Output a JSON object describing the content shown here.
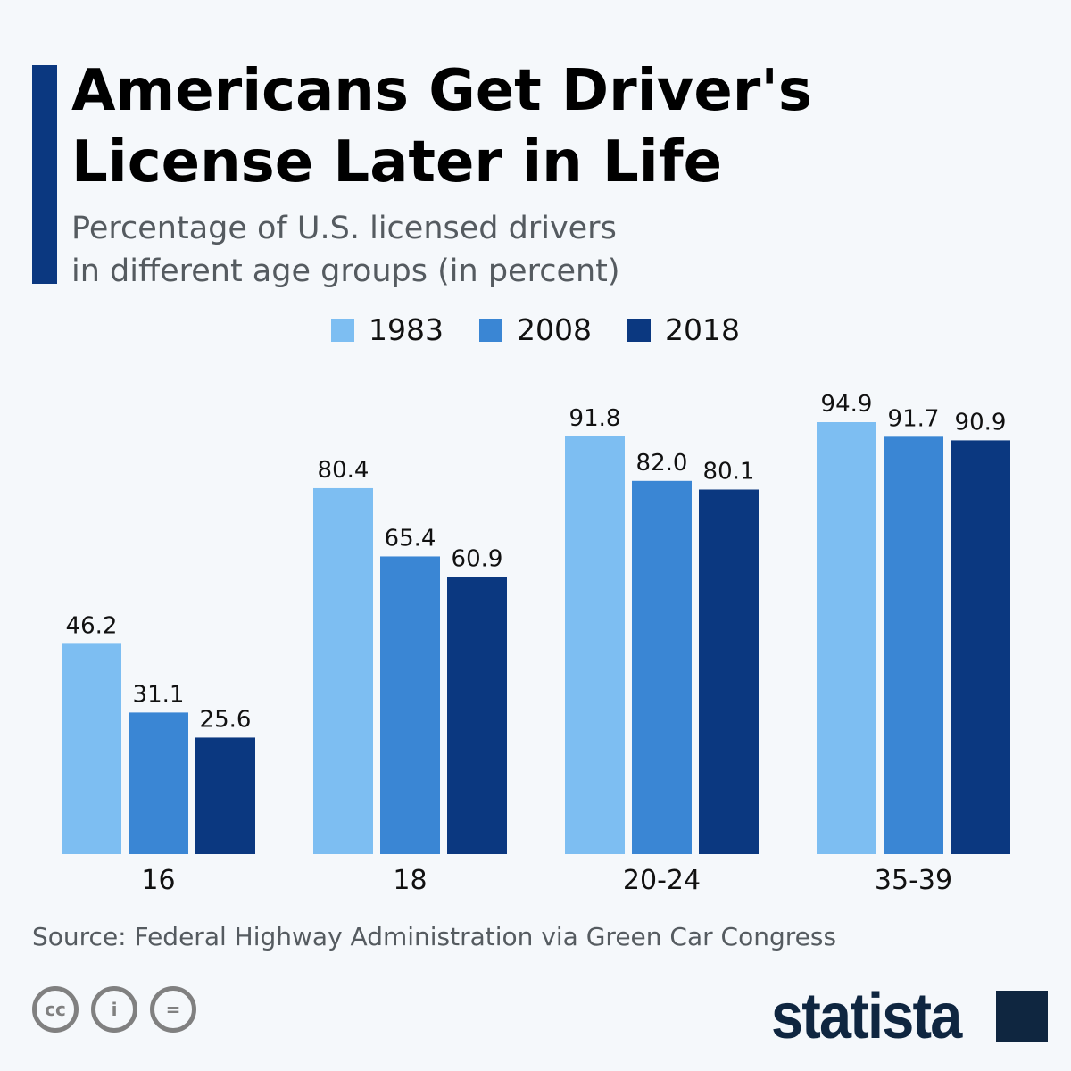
{
  "title": "Americans Get Driver's License Later in Life",
  "subtitle_line1": "Percentage of U.S. licensed drivers",
  "subtitle_line2": "in different age groups (in percent)",
  "source": "Source: Federal Highway Administration via Green Car Congress",
  "logo": "statista",
  "license_icons": [
    "cc-icon",
    "by-icon",
    "nd-icon"
  ],
  "colors": {
    "1983": "#7dbef2",
    "2008": "#3a86d4",
    "2018": "#0b3880",
    "accent": "#0b3880"
  },
  "chart_data": {
    "type": "bar",
    "title": "Americans Get Driver's License Later in Life",
    "categories": [
      "16",
      "18",
      "20-24",
      "35-39"
    ],
    "series": [
      {
        "name": "1983",
        "values": [
          46.2,
          80.4,
          91.8,
          94.9
        ],
        "color": "#7dbef2"
      },
      {
        "name": "2008",
        "values": [
          31.1,
          65.4,
          82.0,
          91.7
        ],
        "color": "#3a86d4"
      },
      {
        "name": "2018",
        "values": [
          25.6,
          60.9,
          80.1,
          90.9
        ],
        "color": "#0b3880"
      }
    ],
    "ylim": [
      0,
      100
    ],
    "grid": false,
    "legend": "top-center",
    "data_labels": true
  }
}
